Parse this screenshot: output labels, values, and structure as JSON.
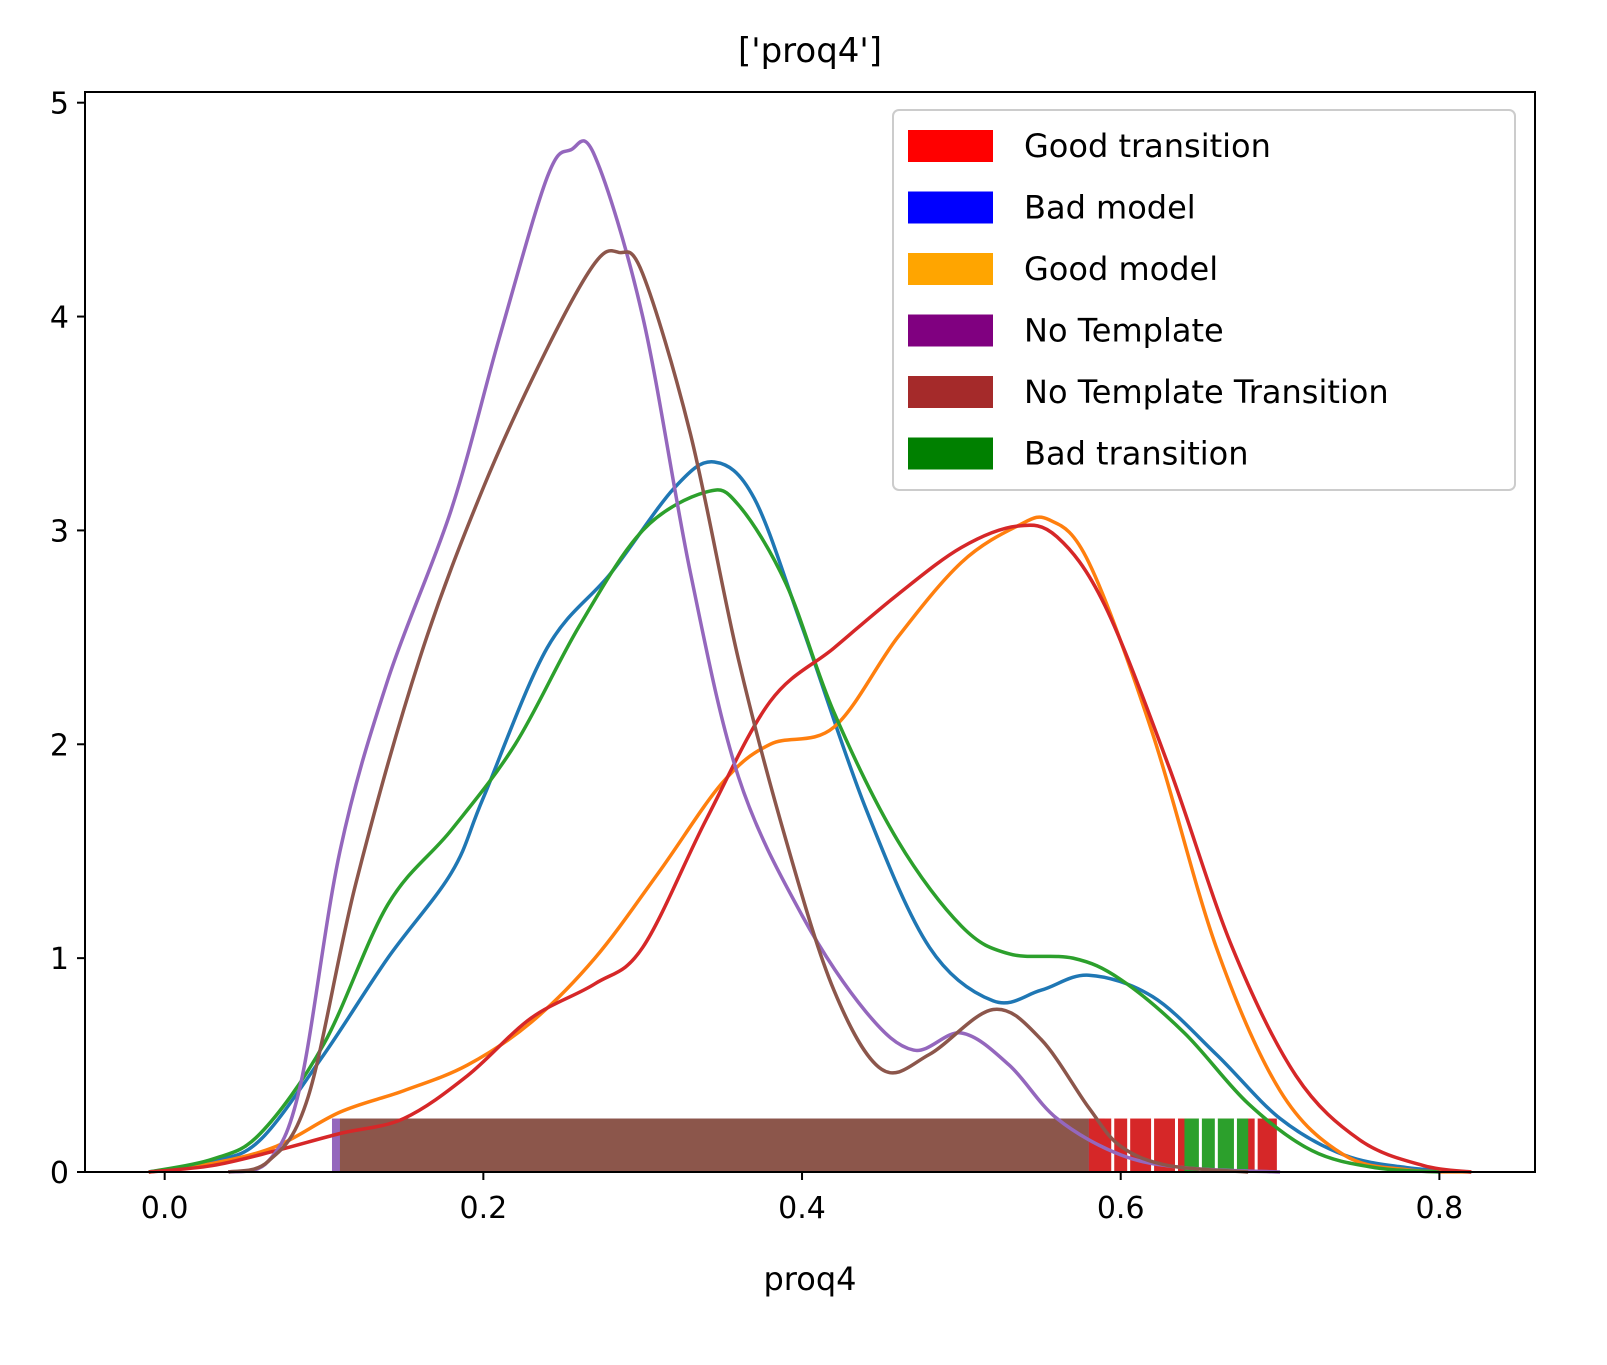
{
  "chart_data": {
    "type": "line",
    "title": "['proq4']",
    "xlabel": "proq4",
    "ylabel": "",
    "xlim": [
      -0.05,
      0.86
    ],
    "ylim": [
      0,
      5.05
    ],
    "xticks": [
      0.0,
      0.2,
      0.4,
      0.6,
      0.8
    ],
    "xtick_labels": [
      "0.0",
      "0.2",
      "0.4",
      "0.6",
      "0.8"
    ],
    "yticks": [
      0,
      1,
      2,
      3,
      4,
      5
    ],
    "ytick_labels": [
      "0",
      "1",
      "2",
      "3",
      "4",
      "5"
    ],
    "grid": false,
    "legend_position": "top-right",
    "legend": [
      {
        "label": "Good transition",
        "color": "#ff0000"
      },
      {
        "label": "Bad model",
        "color": "#0000ff"
      },
      {
        "label": "Good model",
        "color": "#ffa500"
      },
      {
        "label": "No Template",
        "color": "#800080"
      },
      {
        "label": "No Template Transition",
        "color": "#a52a2a"
      },
      {
        "label": "Bad transition",
        "color": "#008000"
      }
    ],
    "series": [
      {
        "color": "#1f77b4",
        "x": [
          -0.01,
          0.03,
          0.06,
          0.1,
          0.14,
          0.18,
          0.2,
          0.24,
          0.28,
          0.32,
          0.345,
          0.37,
          0.4,
          0.44,
          0.48,
          0.52,
          0.55,
          0.58,
          0.62,
          0.66,
          0.7,
          0.74,
          0.78,
          0.82
        ],
        "y": [
          0.0,
          0.05,
          0.15,
          0.55,
          1.0,
          1.4,
          1.75,
          2.45,
          2.8,
          3.2,
          3.32,
          3.15,
          2.55,
          1.7,
          1.05,
          0.8,
          0.85,
          0.92,
          0.82,
          0.55,
          0.25,
          0.08,
          0.02,
          0.0
        ]
      },
      {
        "color": "#ff7f0e",
        "x": [
          -0.01,
          0.03,
          0.07,
          0.11,
          0.15,
          0.19,
          0.23,
          0.27,
          0.31,
          0.35,
          0.38,
          0.42,
          0.46,
          0.5,
          0.535,
          0.555,
          0.58,
          0.62,
          0.66,
          0.7,
          0.74,
          0.78,
          0.82
        ],
        "y": [
          0.0,
          0.04,
          0.12,
          0.28,
          0.38,
          0.5,
          0.7,
          1.0,
          1.4,
          1.82,
          2.0,
          2.08,
          2.5,
          2.85,
          3.02,
          3.05,
          2.85,
          2.05,
          1.05,
          0.38,
          0.08,
          0.01,
          0.0
        ]
      },
      {
        "color": "#2ca02c",
        "x": [
          -0.01,
          0.03,
          0.06,
          0.1,
          0.14,
          0.18,
          0.22,
          0.26,
          0.3,
          0.34,
          0.36,
          0.39,
          0.42,
          0.46,
          0.5,
          0.53,
          0.57,
          0.6,
          0.64,
          0.68,
          0.72,
          0.76,
          0.8
        ],
        "y": [
          0.0,
          0.06,
          0.18,
          0.6,
          1.25,
          1.6,
          2.0,
          2.55,
          3.0,
          3.18,
          3.12,
          2.75,
          2.15,
          1.55,
          1.15,
          1.02,
          1.0,
          0.9,
          0.65,
          0.32,
          0.1,
          0.02,
          0.0
        ]
      },
      {
        "color": "#d62728",
        "x": [
          -0.01,
          0.03,
          0.07,
          0.11,
          0.15,
          0.19,
          0.23,
          0.27,
          0.3,
          0.34,
          0.38,
          0.42,
          0.46,
          0.5,
          0.535,
          0.56,
          0.59,
          0.63,
          0.67,
          0.71,
          0.75,
          0.79,
          0.82
        ],
        "y": [
          0.0,
          0.03,
          0.1,
          0.18,
          0.25,
          0.45,
          0.72,
          0.88,
          1.05,
          1.65,
          2.2,
          2.45,
          2.7,
          2.92,
          3.02,
          2.97,
          2.65,
          1.9,
          1.05,
          0.45,
          0.15,
          0.03,
          0.0
        ]
      },
      {
        "color": "#9467bd",
        "x": [
          0.04,
          0.065,
          0.085,
          0.11,
          0.14,
          0.18,
          0.21,
          0.24,
          0.255,
          0.27,
          0.3,
          0.33,
          0.36,
          0.4,
          0.44,
          0.47,
          0.5,
          0.53,
          0.56,
          0.6,
          0.64,
          0.7
        ],
        "y": [
          0.0,
          0.05,
          0.4,
          1.5,
          2.3,
          3.1,
          3.9,
          4.65,
          4.78,
          4.75,
          4.0,
          2.8,
          1.85,
          1.2,
          0.75,
          0.57,
          0.65,
          0.5,
          0.25,
          0.08,
          0.02,
          0.0
        ]
      },
      {
        "color": "#8c564b",
        "x": [
          0.04,
          0.065,
          0.09,
          0.12,
          0.16,
          0.2,
          0.24,
          0.27,
          0.285,
          0.3,
          0.33,
          0.36,
          0.39,
          0.42,
          0.45,
          0.48,
          0.52,
          0.55,
          0.58,
          0.6,
          0.63,
          0.68
        ],
        "y": [
          0.0,
          0.05,
          0.35,
          1.35,
          2.4,
          3.2,
          3.85,
          4.25,
          4.3,
          4.2,
          3.45,
          2.4,
          1.55,
          0.85,
          0.48,
          0.55,
          0.76,
          0.62,
          0.3,
          0.12,
          0.03,
          0.0
        ]
      }
    ],
    "rug": [
      {
        "color": "#9467bd",
        "x_min": 0.105,
        "x_max": 0.59
      },
      {
        "color": "#8c564b",
        "x_min": 0.11,
        "x_max": 0.58
      },
      {
        "color": "#d62728",
        "x_min": 0.58,
        "x_max": 0.698
      },
      {
        "color": "#2ca02c",
        "x_min": 0.64,
        "x_max": 0.68
      }
    ]
  }
}
